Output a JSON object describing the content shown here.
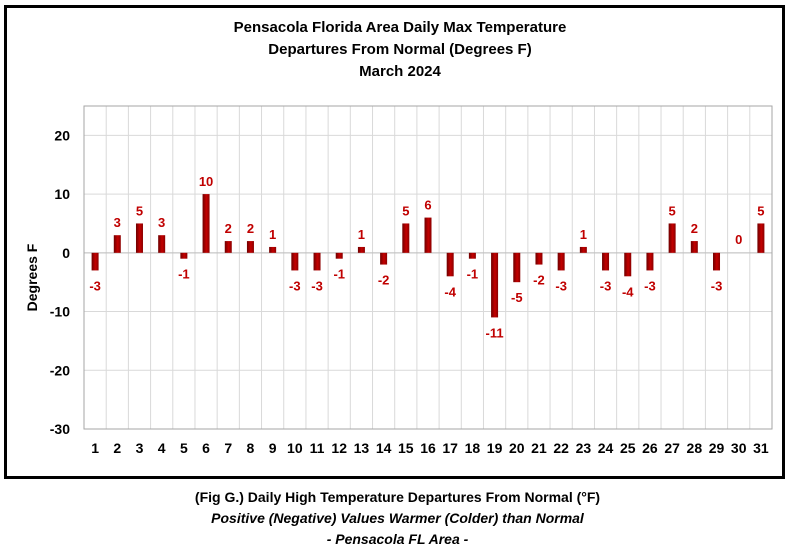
{
  "chart_data": {
    "type": "bar",
    "title_lines": [
      "Pensacola Florida Area Daily Max Temperature",
      "Departures From Normal (Degrees F)",
      "March 2024"
    ],
    "xlabel": "",
    "ylabel": "Degrees F",
    "ylim": [
      -30,
      25
    ],
    "yticks": [
      20,
      10,
      0,
      -10,
      -20,
      -30
    ],
    "grid": true,
    "legend": "none",
    "categories": [
      "1",
      "2",
      "3",
      "4",
      "5",
      "6",
      "7",
      "8",
      "9",
      "10",
      "11",
      "12",
      "13",
      "14",
      "15",
      "16",
      "17",
      "18",
      "19",
      "20",
      "21",
      "22",
      "23",
      "24",
      "25",
      "26",
      "27",
      "28",
      "29",
      "30",
      "31"
    ],
    "values": [
      -3,
      3,
      5,
      3,
      -1,
      10,
      2,
      2,
      1,
      -3,
      -3,
      -1,
      1,
      -2,
      5,
      6,
      -4,
      -1,
      -11,
      -5,
      -2,
      -3,
      1,
      -3,
      -4,
      -3,
      5,
      2,
      -3,
      0,
      5
    ],
    "bar_color": "#a50000",
    "label_color": "#c00000"
  },
  "caption": {
    "line1": "(Fig G.) Daily High Temperature Departures From Normal (°F)",
    "line2": "Positive (Negative) Values Warmer (Colder) than Normal",
    "line3": "- Pensacola FL Area -"
  }
}
